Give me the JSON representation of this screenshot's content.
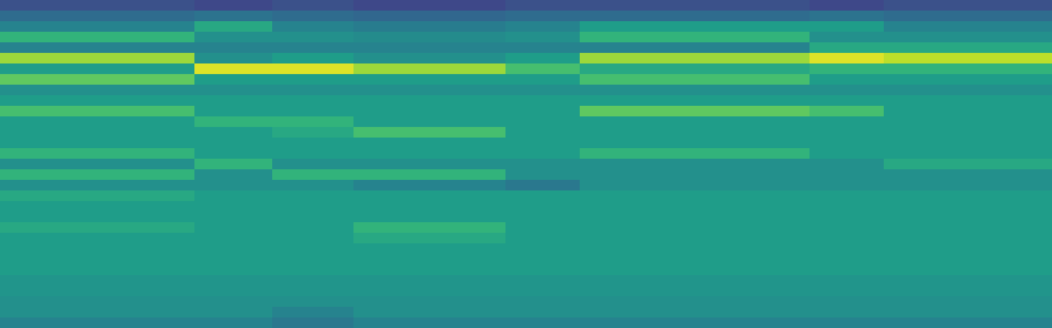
{
  "chart_data": {
    "type": "heatmap",
    "tick_labels": false,
    "xlim": [
      0,
      1488
    ],
    "ylim": [
      0,
      465
    ],
    "zlim": [
      0,
      100
    ],
    "x_edges": [
      0,
      275,
      385,
      500,
      715,
      820,
      1145,
      1250,
      1488
    ],
    "y_edges": [
      0,
      15,
      30,
      45,
      60,
      75,
      90,
      105,
      120,
      135,
      150,
      165,
      180,
      195,
      210,
      225,
      240,
      255,
      270,
      285,
      300,
      315,
      330,
      345,
      360,
      375,
      390,
      405,
      420,
      435,
      450,
      465
    ],
    "cells": [
      [
        25,
        22,
        25,
        22,
        25,
        25,
        22,
        25
      ],
      [
        35,
        38,
        35,
        33,
        35,
        35,
        38,
        35
      ],
      [
        45,
        60,
        45,
        42,
        45,
        55,
        55,
        45
      ],
      [
        65,
        50,
        50,
        48,
        50,
        65,
        50,
        50
      ],
      [
        45,
        45,
        45,
        45,
        45,
        45,
        60,
        60
      ],
      [
        85,
        50,
        55,
        50,
        55,
        85,
        95,
        90
      ],
      [
        55,
        95,
        95,
        85,
        70,
        60,
        65,
        65
      ],
      [
        75,
        55,
        55,
        55,
        55,
        70,
        55,
        55
      ],
      [
        50,
        50,
        50,
        50,
        50,
        50,
        50,
        50
      ],
      [
        55,
        55,
        55,
        55,
        55,
        55,
        55,
        55
      ],
      [
        70,
        55,
        55,
        55,
        55,
        75,
        70,
        55
      ],
      [
        55,
        65,
        65,
        55,
        55,
        55,
        55,
        55
      ],
      [
        55,
        55,
        60,
        70,
        55,
        55,
        55,
        55
      ],
      [
        55,
        55,
        55,
        55,
        55,
        55,
        55,
        55
      ],
      [
        65,
        55,
        55,
        55,
        55,
        65,
        55,
        55
      ],
      [
        50,
        65,
        50,
        50,
        50,
        50,
        50,
        60
      ],
      [
        65,
        50,
        65,
        65,
        50,
        50,
        50,
        50
      ],
      [
        50,
        50,
        50,
        45,
        40,
        50,
        50,
        50
      ],
      [
        60,
        55,
        55,
        55,
        55,
        55,
        55,
        55
      ],
      [
        55,
        55,
        55,
        55,
        55,
        55,
        55,
        55
      ],
      [
        55,
        55,
        55,
        55,
        55,
        55,
        55,
        55
      ],
      [
        60,
        55,
        55,
        65,
        55,
        55,
        55,
        55
      ],
      [
        55,
        55,
        55,
        60,
        55,
        55,
        55,
        55
      ],
      [
        55,
        55,
        55,
        55,
        55,
        55,
        55,
        55
      ],
      [
        55,
        55,
        55,
        55,
        55,
        55,
        55,
        55
      ],
      [
        55,
        55,
        55,
        55,
        55,
        55,
        55,
        55
      ],
      [
        52,
        52,
        52,
        52,
        52,
        52,
        52,
        52
      ],
      [
        52,
        52,
        52,
        52,
        52,
        52,
        52,
        52
      ],
      [
        50,
        50,
        50,
        50,
        50,
        50,
        50,
        50
      ],
      [
        50,
        50,
        45,
        50,
        50,
        50,
        50,
        50
      ],
      [
        45,
        45,
        40,
        45,
        45,
        45,
        45,
        45
      ]
    ]
  }
}
